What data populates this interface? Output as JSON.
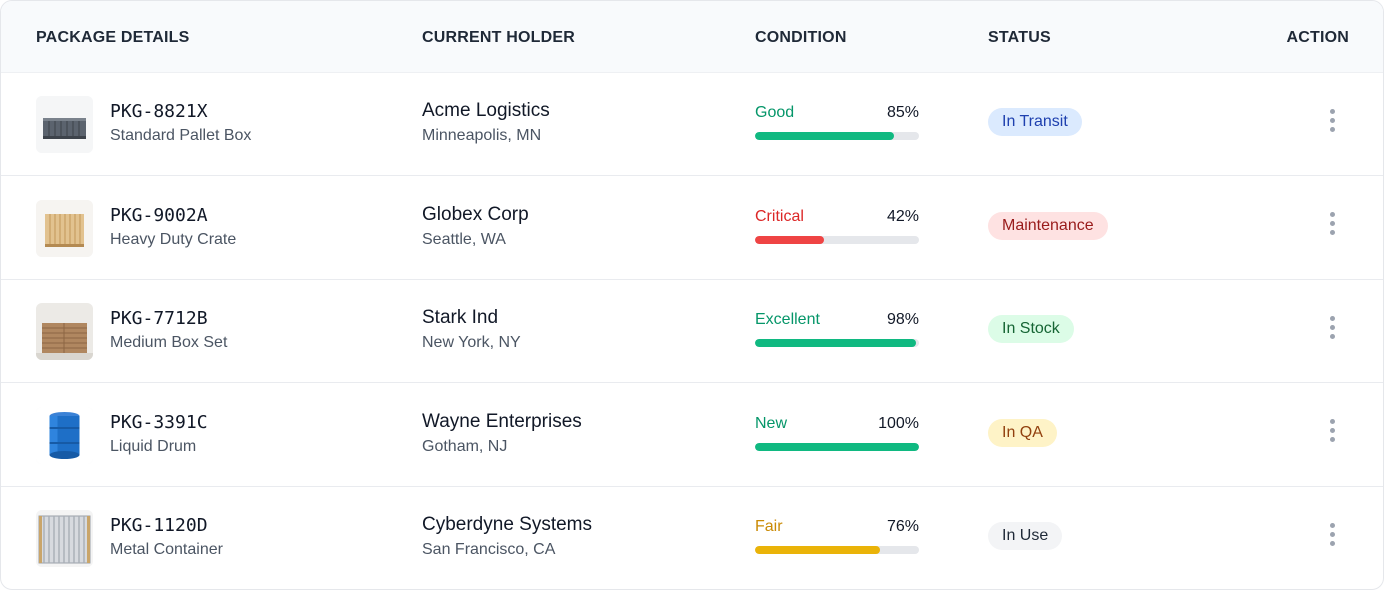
{
  "columns": {
    "package": "PACKAGE DETAILS",
    "holder": "CURRENT HOLDER",
    "condition": "CONDITION",
    "status": "STATUS",
    "action": "ACTION"
  },
  "rows": [
    {
      "id": "PKG-8821X",
      "type": "Standard Pallet Box",
      "thumb": "pallet-box-icon",
      "holder": "Acme Logistics",
      "location": "Minneapolis, MN",
      "condition": "Good",
      "percent": "85%",
      "value": 85,
      "condition_color": "#059669",
      "bar_color": "#10b981",
      "status": "In Transit",
      "status_bg": "#dbeafe",
      "status_fg": "#1e40af"
    },
    {
      "id": "PKG-9002A",
      "type": "Heavy Duty Crate",
      "thumb": "wooden-crate-icon",
      "holder": "Globex Corp",
      "location": "Seattle, WA",
      "condition": "Critical",
      "percent": "42%",
      "value": 42,
      "condition_color": "#dc2626",
      "bar_color": "#ef4444",
      "status": "Maintenance",
      "status_bg": "#fee2e2",
      "status_fg": "#991b1b"
    },
    {
      "id": "PKG-7712B",
      "type": "Medium Box Set",
      "thumb": "cardboard-boxes-icon",
      "holder": "Stark Ind",
      "location": "New York, NY",
      "condition": "Excellent",
      "percent": "98%",
      "value": 98,
      "condition_color": "#059669",
      "bar_color": "#10b981",
      "status": "In Stock",
      "status_bg": "#dcfce7",
      "status_fg": "#166534"
    },
    {
      "id": "PKG-3391C",
      "type": "Liquid Drum",
      "thumb": "blue-drum-icon",
      "holder": "Wayne Enterprises",
      "location": "Gotham, NJ",
      "condition": "New",
      "percent": "100%",
      "value": 100,
      "condition_color": "#059669",
      "bar_color": "#10b981",
      "status": "In QA",
      "status_bg": "#fef3c7",
      "status_fg": "#92400e"
    },
    {
      "id": "PKG-1120D",
      "type": "Metal Container",
      "thumb": "metal-container-icon",
      "holder": "Cyberdyne Systems",
      "location": "San Francisco, CA",
      "condition": "Fair",
      "percent": "76%",
      "value": 76,
      "condition_color": "#ca8a04",
      "bar_color": "#eab308",
      "status": "In Use",
      "status_bg": "#f3f4f6",
      "status_fg": "#1f2937"
    }
  ]
}
